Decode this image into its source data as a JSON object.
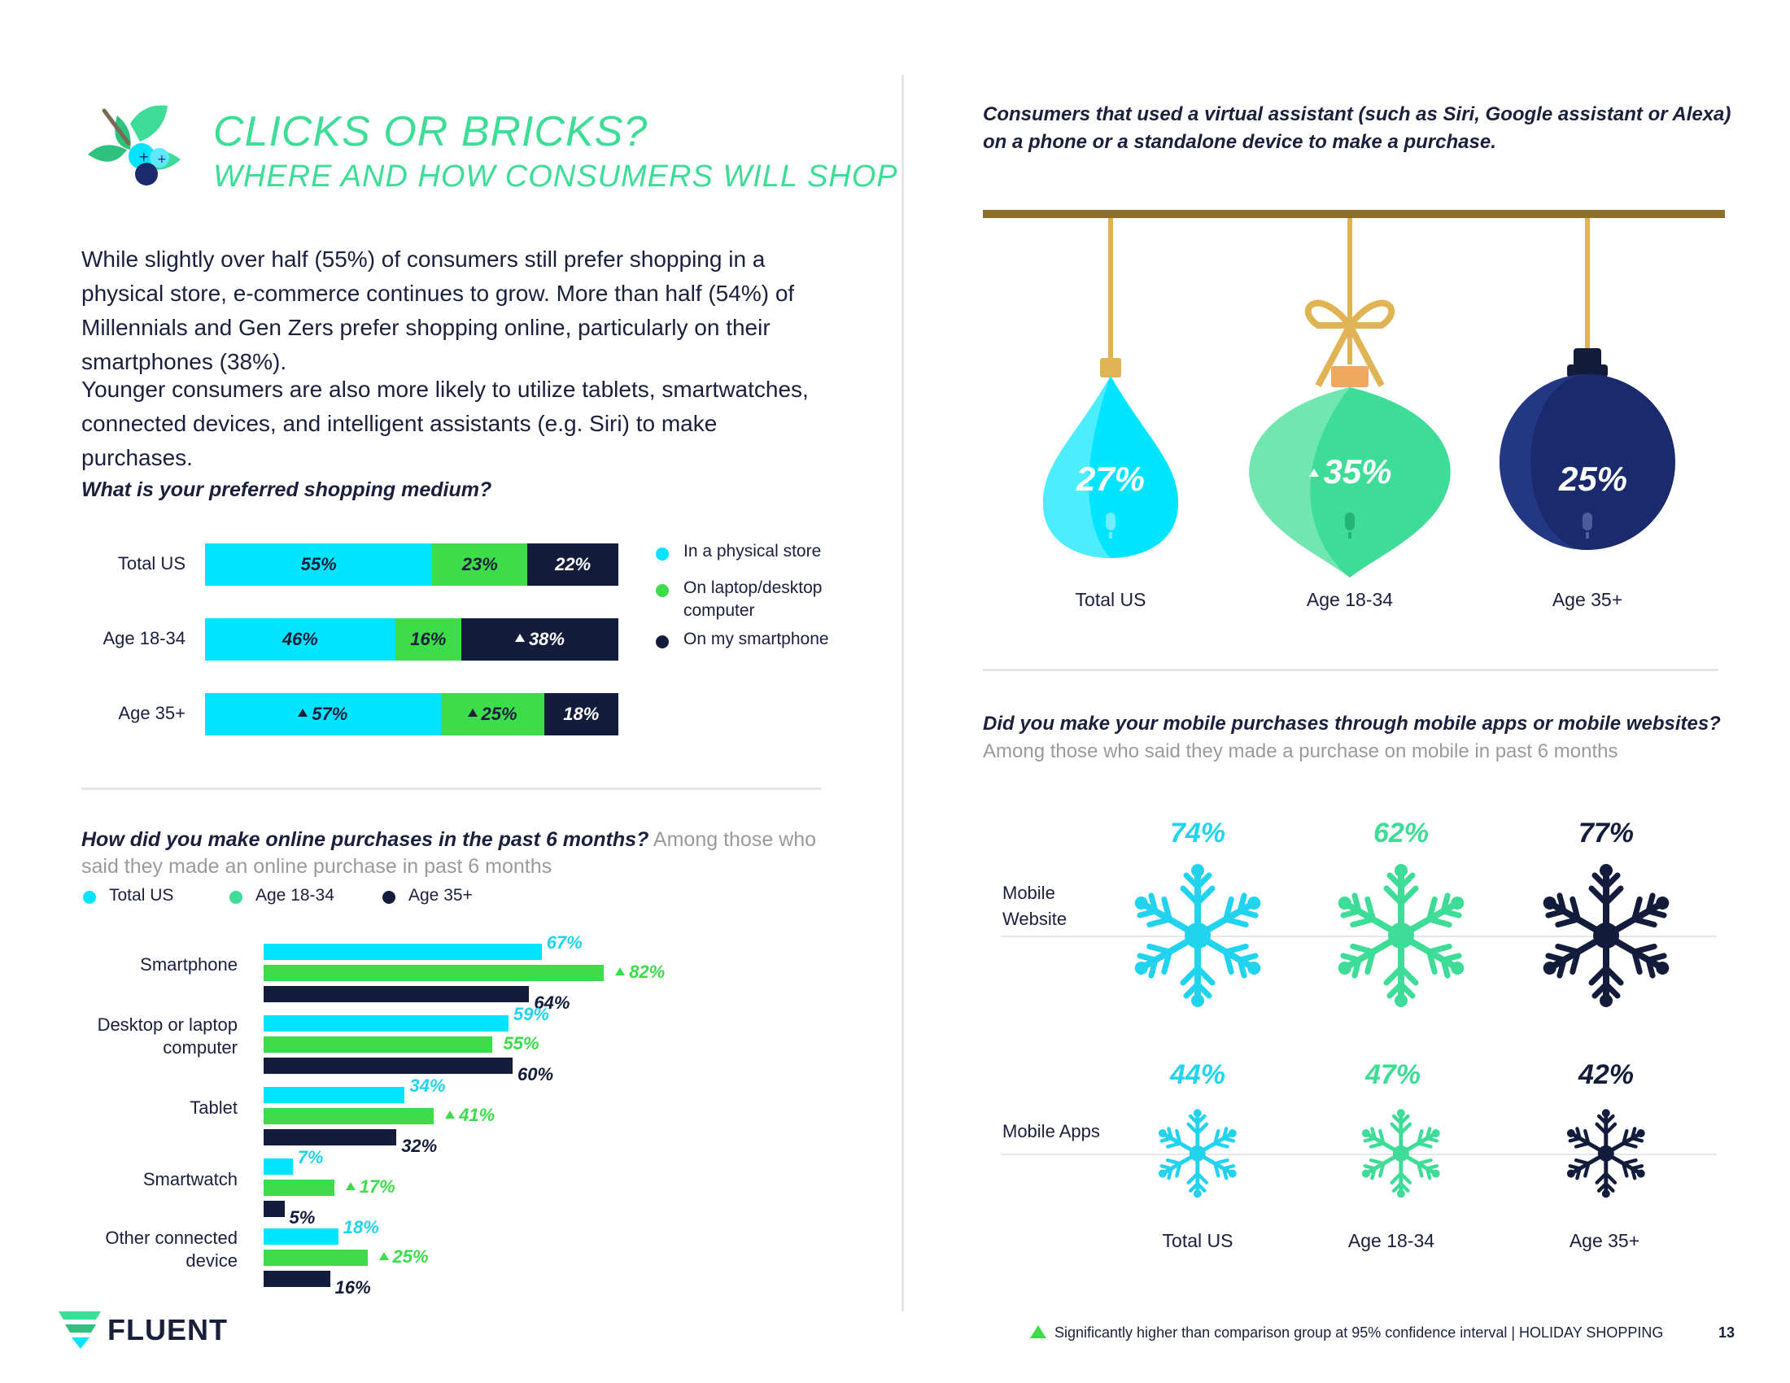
{
  "header": {
    "title": "CLICKS OR BRICKS?",
    "subtitle": "WHERE AND HOW CONSUMERS WILL SHOP"
  },
  "intro": {
    "p1": "While slightly over half (55%) of consumers still prefer shopping in a physical store, e-commerce continues to grow. More than half (54%) of Millennials and Gen Zers prefer shopping online, particularly on their smartphones (38%).",
    "p2": "Younger consumers are also more likely to utilize tablets, smartwatches, connected devices, and intelligent assistants (e.g. Siri) to make purchases."
  },
  "medium": {
    "question": "What is your preferred shopping medium?",
    "legend": [
      "In a physical store",
      "On laptop/desktop computer",
      "On my smartphone"
    ],
    "colors": [
      "#00e5ff",
      "#3ddc4b",
      "#141c3c"
    ],
    "rows": [
      {
        "label": "Total US",
        "values": [
          "55%",
          "23%",
          "22%"
        ]
      },
      {
        "label": "Age 18-34",
        "values": [
          "46%",
          "16%",
          "38%"
        ]
      },
      {
        "label": "Age 35+",
        "values": [
          "57%",
          "25%",
          "18%"
        ]
      }
    ]
  },
  "online": {
    "question": "How did you make online purchases in the past 6 months?",
    "question_sub": "Among those who said they made an online purchase in past 6 months",
    "legend": [
      "Total US",
      "Age 18-34",
      "Age 35+"
    ],
    "colors": [
      "#00e5ff",
      "#3ddc4b",
      "#141c3c"
    ]
  },
  "chart_data": {
    "type": "bar",
    "categories": [
      "Smartphone",
      "Desktop or laptop computer",
      "Tablet",
      "Smartwatch",
      "Other connected device"
    ],
    "series": [
      {
        "name": "Total US",
        "values": [
          67,
          59,
          34,
          7,
          18
        ]
      },
      {
        "name": "Age 18-34",
        "values": [
          82,
          55,
          41,
          17,
          25
        ]
      },
      {
        "name": "Age 35+",
        "values": [
          64,
          60,
          32,
          5,
          16
        ]
      }
    ],
    "orientation": "horizontal",
    "significant_marks": {
      "Age 18-34": [
        true,
        false,
        true,
        true,
        true
      ]
    }
  },
  "assistant": {
    "question": "Consumers that used a virtual assistant (such as Siri, Google assistant or Alexa) on a phone or a standalone device to make a purchase.",
    "items": [
      {
        "label": "Total US",
        "value": "27%"
      },
      {
        "label": "Age 18-34",
        "value": "35%"
      },
      {
        "label": "Age 35+",
        "value": "25%"
      }
    ]
  },
  "mobile": {
    "question": "Did you make your mobile purchases through mobile apps or mobile websites?",
    "question_sub": "Among those who said they made a purchase on mobile in past 6 months",
    "rows": [
      {
        "label": "Mobile Website",
        "values": [
          "74%",
          "62%",
          "77%"
        ]
      },
      {
        "label": "Mobile Apps",
        "values": [
          "44%",
          "47%",
          "42%"
        ]
      }
    ],
    "columns": [
      "Total US",
      "Age 18-34",
      "Age 35+"
    ]
  },
  "footer": {
    "brand": "FLUENT",
    "note": "Significantly higher than comparison group at 95% confidence interval",
    "section": "| HOLIDAY SHOPPING",
    "page": "13"
  }
}
